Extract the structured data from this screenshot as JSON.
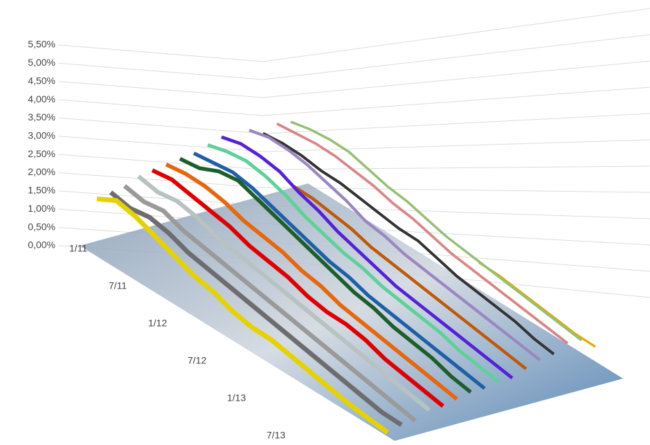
{
  "chart_data": {
    "type": "line3d",
    "categories": [
      "1/11",
      null,
      null,
      "7/11",
      null,
      null,
      "1/12",
      null,
      null,
      "7/12",
      null,
      null,
      "1/13",
      null,
      null,
      "7/13"
    ],
    "ylim": [
      0,
      5.5
    ],
    "yticks": [
      {
        "value": 0,
        "label": "0,00%"
      },
      {
        "value": 0.5,
        "label": "0,50%"
      },
      {
        "value": 1,
        "label": "1,00%"
      },
      {
        "value": 1.5,
        "label": "1,50%"
      },
      {
        "value": 2,
        "label": "2,00%"
      },
      {
        "value": 2.5,
        "label": "2,50%"
      },
      {
        "value": 3,
        "label": "3,00%"
      },
      {
        "value": 3.5,
        "label": "3,50%"
      },
      {
        "value": 4,
        "label": "4,00%"
      },
      {
        "value": 4.5,
        "label": "4,50%"
      },
      {
        "value": 5,
        "label": "5,00%"
      },
      {
        "value": 5.5,
        "label": "5,50%"
      }
    ],
    "grid": true,
    "series": [
      {
        "color": "#e6d200",
        "values": [
          1.3,
          1.6,
          1.5,
          1.3,
          1.1,
          0.9,
          0.8,
          0.6,
          0.5,
          0.5,
          0.4,
          0.3,
          0.2,
          0.1,
          0.05,
          0
        ]
      },
      {
        "color": "#6d6d6d",
        "values": [
          1.4,
          1.3,
          1.4,
          1.3,
          1.1,
          1.0,
          0.9,
          0.8,
          0.7,
          0.6,
          0.5,
          0.4,
          0.3,
          0.2,
          0.1,
          0.1
        ]
      },
      {
        "color": "#9a9a9a",
        "values": [
          1.5,
          1.4,
          1.5,
          1.3,
          1.2,
          1.1,
          1.0,
          0.9,
          0.8,
          0.7,
          0.6,
          0.5,
          0.4,
          0.3,
          0.2,
          0.1
        ]
      },
      {
        "color": "#b8c2c0",
        "values": [
          1.7,
          1.6,
          1.7,
          1.6,
          1.4,
          1.3,
          1.2,
          1.1,
          1.0,
          0.9,
          0.8,
          0.7,
          0.6,
          0.5,
          0.4,
          0.3
        ]
      },
      {
        "color": "#e00000",
        "values": [
          1.8,
          1.9,
          1.8,
          1.7,
          1.6,
          1.4,
          1.3,
          1.2,
          1.0,
          0.9,
          0.9,
          0.8,
          0.6,
          0.5,
          0.4,
          0.3
        ]
      },
      {
        "color": "#e8660c",
        "values": [
          1.9,
          2.0,
          2.0,
          1.9,
          1.7,
          1.6,
          1.5,
          1.3,
          1.2,
          1.0,
          0.9,
          0.8,
          0.7,
          0.6,
          0.5,
          0.4
        ]
      },
      {
        "color": "#1e5e2a",
        "values": [
          2.0,
          2.1,
          2.4,
          2.5,
          2.3,
          2.1,
          1.9,
          1.7,
          1.5,
          1.3,
          1.2,
          1.0,
          0.9,
          0.8,
          0.6,
          0.5
        ]
      },
      {
        "color": "#1f5fa8",
        "values": [
          2.1,
          2.2,
          2.3,
          2.2,
          2.0,
          1.8,
          1.6,
          1.4,
          1.3,
          1.1,
          1.0,
          0.9,
          0.8,
          0.7,
          0.6,
          0.5
        ]
      },
      {
        "color": "#5ed19a",
        "values": [
          2.3,
          2.5,
          2.6,
          2.5,
          2.3,
          2.0,
          1.8,
          1.6,
          1.5,
          1.3,
          1.2,
          1.1,
          1.0,
          0.8,
          0.7,
          0.6
        ]
      },
      {
        "color": "#5521d6",
        "values": [
          2.5,
          2.7,
          2.7,
          2.6,
          2.3,
          2.1,
          1.8,
          1.6,
          1.4,
          1.2,
          1.1,
          1.0,
          0.9,
          0.8,
          0.7,
          0.6
        ]
      },
      {
        "color": "#c0580a",
        "values": [
          null,
          null,
          null,
          2.0,
          2.0,
          1.9,
          1.8,
          1.6,
          1.5,
          1.4,
          1.3,
          1.2,
          1.1,
          1.0,
          0.9,
          0.8
        ]
      },
      {
        "color": "#9b86c2",
        "values": [
          2.6,
          2.8,
          2.8,
          2.7,
          2.5,
          2.3,
          2.0,
          1.9,
          1.7,
          1.6,
          1.5,
          1.4,
          1.3,
          1.2,
          1.1,
          1.0
        ]
      },
      {
        "color": "#333333",
        "values": [
          2.4,
          2.5,
          2.5,
          2.4,
          2.4,
          2.3,
          2.2,
          2.1,
          2.1,
          1.9,
          1.7,
          1.6,
          1.5,
          1.4,
          1.2,
          1.1
        ]
      },
      {
        "color": "#d98585",
        "values": [
          2.7,
          2.8,
          2.9,
          2.9,
          2.8,
          2.7,
          2.5,
          2.4,
          2.2,
          2.0,
          1.9,
          1.8,
          1.7,
          1.6,
          1.5,
          1.4
        ]
      },
      {
        "color": "#94c072",
        "values": [
          2.7,
          2.9,
          3.0,
          3.0,
          2.8,
          2.6,
          2.5,
          2.3,
          2.1,
          2.0,
          1.9,
          1.8,
          1.7,
          1.6,
          1.5,
          1.4
        ]
      },
      {
        "color": "#e8a800",
        "values": [
          null,
          null,
          null,
          null,
          null,
          null,
          null,
          null,
          null,
          1.4,
          1.4,
          1.3,
          1.2,
          1.1,
          1.0,
          1.0
        ]
      }
    ]
  }
}
